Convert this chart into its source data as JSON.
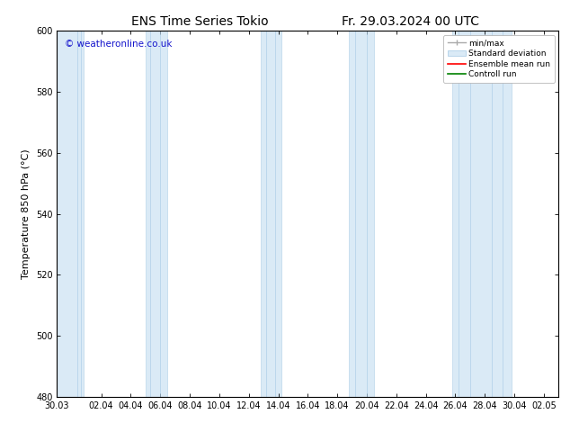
{
  "title_left": "ENS Time Series Tokio",
  "title_right": "Fr. 29.03.2024 00 UTC",
  "ylabel": "Temperature 850 hPa (°C)",
  "ylim": [
    480,
    600
  ],
  "yticks": [
    480,
    500,
    520,
    540,
    560,
    580,
    600
  ],
  "xtick_labels": [
    "30.03",
    "02.04",
    "04.04",
    "06.04",
    "08.04",
    "10.04",
    "12.04",
    "14.04",
    "16.04",
    "18.04",
    "20.04",
    "22.04",
    "24.04",
    "26.04",
    "28.04",
    "30.04",
    "02.05"
  ],
  "xtick_days": [
    0,
    3,
    5,
    7,
    9,
    11,
    13,
    15,
    17,
    19,
    21,
    23,
    25,
    27,
    29,
    31,
    33
  ],
  "band_color": "#daeaf6",
  "band_edge_color": "#b0cfe8",
  "watermark_text": "© weatheronline.co.uk",
  "watermark_color": "#1414cc",
  "legend_labels": [
    "min/max",
    "Standard deviation",
    "Ensemble mean run",
    "Controll run"
  ],
  "background_color": "#ffffff",
  "title_fontsize": 10,
  "tick_fontsize": 7,
  "label_fontsize": 8,
  "band_ranges": [
    [
      0.0,
      1.8
    ],
    [
      6.0,
      7.5
    ],
    [
      13.8,
      15.2
    ],
    [
      19.8,
      21.5
    ],
    [
      26.8,
      30.8
    ]
  ],
  "narrow_line_positions": [
    1.4,
    1.6,
    6.3,
    7.0,
    14.2,
    14.8,
    20.2,
    21.0,
    27.2,
    28.0,
    29.5,
    30.2
  ]
}
